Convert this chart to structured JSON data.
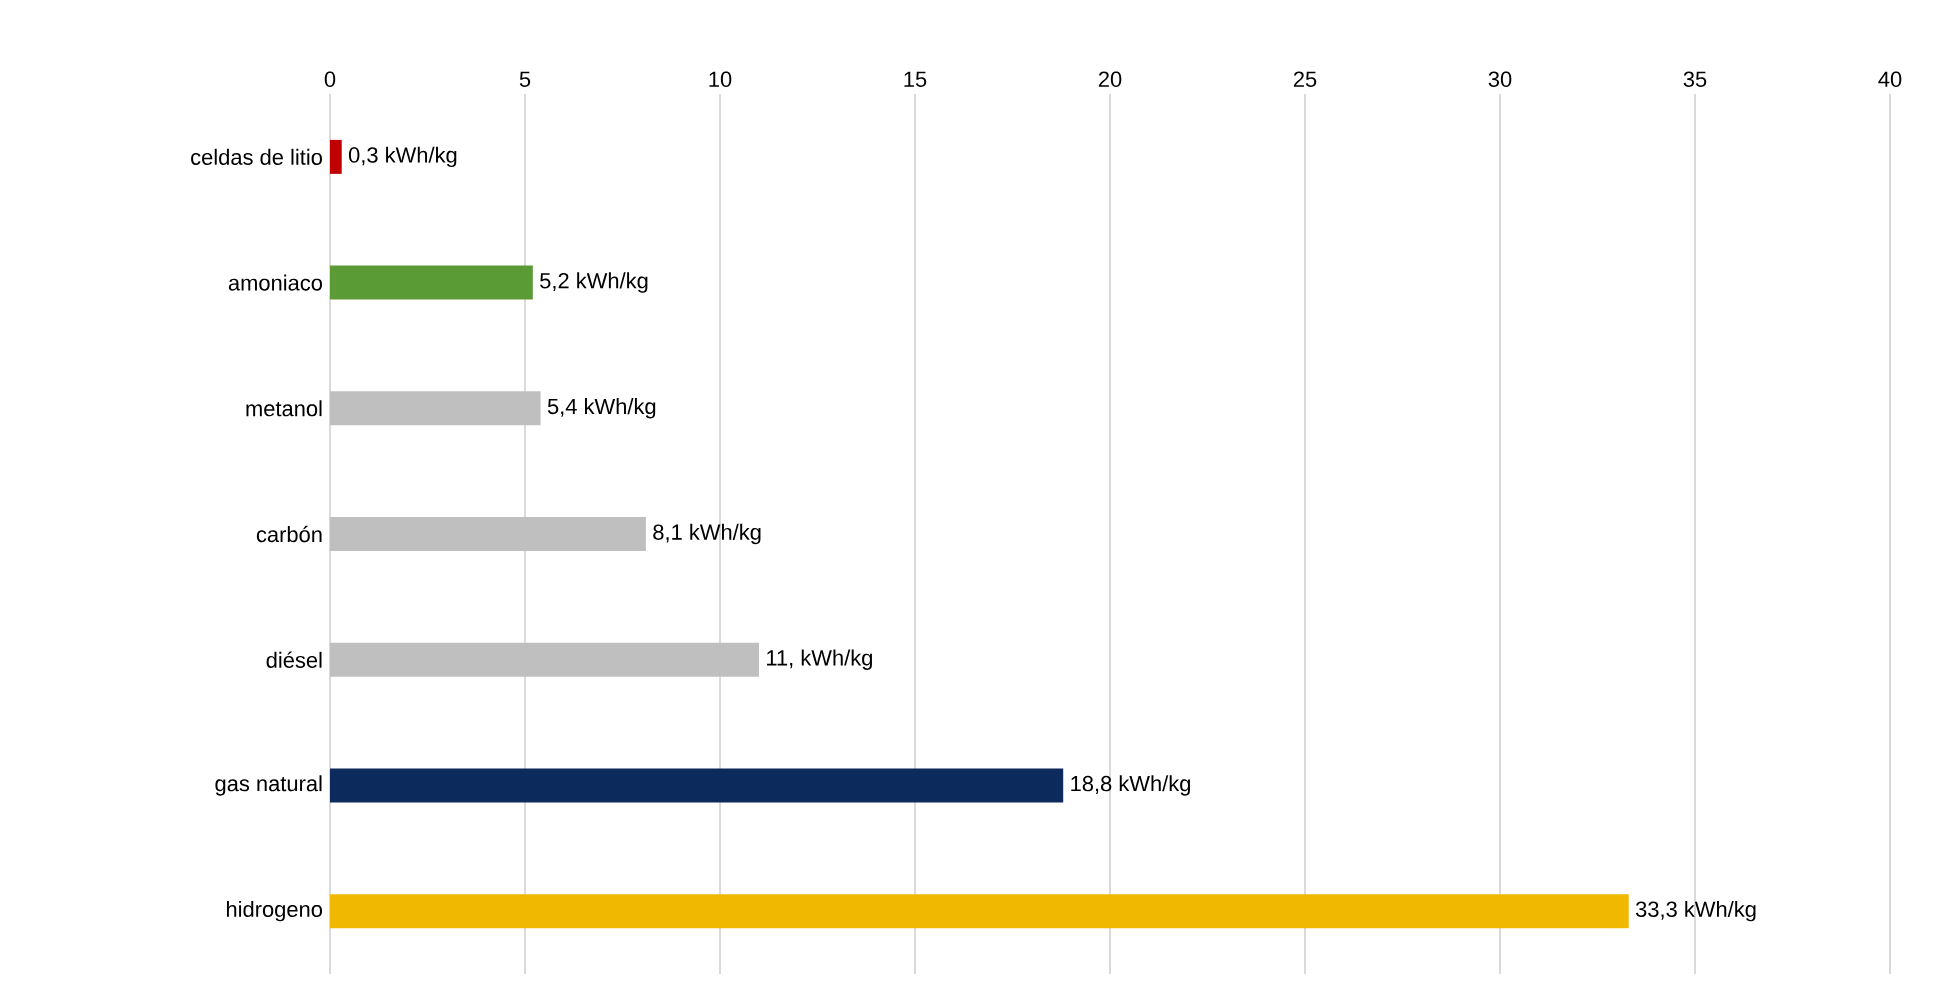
{
  "chart_data": {
    "type": "bar",
    "orientation": "horizontal",
    "categories": [
      "celdas de litio",
      "amoniaco",
      "metanol",
      "carbón",
      "diésel",
      "gas natural",
      "hidrogeno"
    ],
    "values": [
      0.3,
      5.2,
      5.4,
      8.1,
      11,
      18.8,
      33.3
    ],
    "colors": [
      "#c00000",
      "#5b9b35",
      "#bfbfbf",
      "#bfbfbf",
      "#bfbfbf",
      "#0c2a5b",
      "#f0b800"
    ],
    "value_labels": [
      "0,3 kWh/kg",
      "5,2 kWh/kg",
      "5,4 kWh/kg",
      "8,1 kWh/kg",
      "11, kWh/kg",
      "18,8 kWh/kg",
      "33,3 kWh/kg"
    ],
    "xlim": [
      0,
      40
    ],
    "xticks": [
      0,
      5,
      10,
      15,
      20,
      25,
      30,
      35,
      40
    ],
    "grid": "x"
  }
}
